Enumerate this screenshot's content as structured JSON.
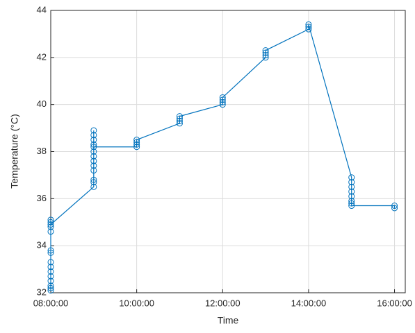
{
  "chart_data": {
    "type": "line",
    "xlabel": "Time",
    "ylabel": "Temperature (°C)",
    "color": "#0072bd",
    "grid": true,
    "marker": "circle",
    "x": [
      "08:00:00",
      "08:00:00",
      "08:00:00",
      "08:00:00",
      "08:00:00",
      "08:00:00",
      "08:00:00",
      "08:00:00",
      "08:00:00",
      "08:00:00",
      "08:00:00",
      "08:00:00",
      "08:00:00",
      "08:00:00",
      "08:00:00",
      "09:00:00",
      "09:00:00",
      "09:00:00",
      "09:00:00",
      "09:00:00",
      "09:00:00",
      "09:00:00",
      "09:00:00",
      "09:00:00",
      "09:00:00",
      "09:00:00",
      "09:00:00",
      "09:00:00",
      "10:00:00",
      "10:00:00",
      "10:00:00",
      "10:00:00",
      "11:00:00",
      "11:00:00",
      "11:00:00",
      "11:00:00",
      "12:00:00",
      "12:00:00",
      "12:00:00",
      "12:00:00",
      "13:00:00",
      "13:00:00",
      "13:00:00",
      "13:00:00",
      "14:00:00",
      "14:00:00",
      "14:00:00",
      "15:00:00",
      "15:00:00",
      "15:00:00",
      "15:00:00",
      "15:00:00",
      "15:00:00",
      "15:00:00",
      "15:00:00",
      "16:00:00",
      "16:00:00"
    ],
    "values": [
      32.1,
      32.2,
      32.3,
      32.5,
      32.7,
      32.9,
      33.1,
      33.3,
      33.7,
      33.8,
      34.6,
      35.1,
      35.0,
      34.8,
      34.9,
      36.5,
      36.7,
      36.8,
      37.2,
      37.4,
      37.6,
      37.8,
      38.0,
      38.3,
      38.5,
      38.7,
      38.9,
      38.2,
      38.2,
      38.3,
      38.4,
      38.5,
      39.2,
      39.3,
      39.4,
      39.5,
      40.0,
      40.1,
      40.2,
      40.3,
      42.0,
      42.1,
      42.2,
      42.3,
      43.2,
      43.3,
      43.4,
      36.9,
      36.7,
      36.5,
      36.3,
      36.1,
      35.9,
      35.8,
      35.7,
      35.7,
      35.6
    ],
    "xlim": [
      "08:00:00",
      "16:15:00"
    ],
    "xticks": [
      "08:00:00",
      "10:00:00",
      "12:00:00",
      "14:00:00",
      "16:00:00"
    ],
    "ylim": [
      32,
      44
    ],
    "yticks": [
      32,
      34,
      36,
      38,
      40,
      42,
      44
    ]
  }
}
